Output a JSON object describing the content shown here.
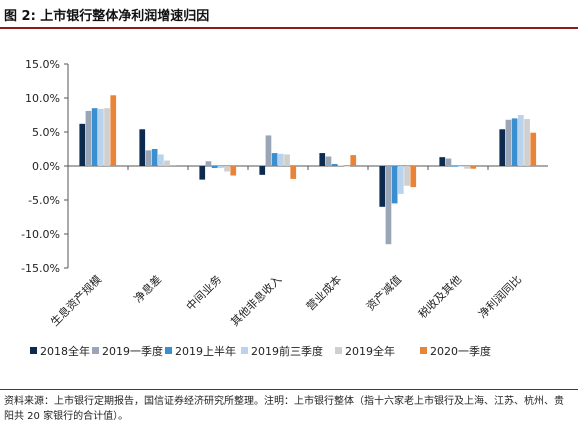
{
  "figure": {
    "title": "图 2: 上市银行整体净利润增速归因",
    "source": "资料来源：上市银行定期报告，国信证券经济研究所整理。注明：上市银行整体（指十六家老上市银行及上海、江苏、杭州、贵阳共 20 家银行的合计值）。"
  },
  "chart_data": {
    "type": "bar",
    "categories": [
      "生息资产规模",
      "净息差",
      "中间业务",
      "其他非息收入",
      "营业成本",
      "资产减值",
      "税收及其他",
      "净利润同比"
    ],
    "series": [
      {
        "name": "2018全年",
        "color": "#0d2a4f",
        "values": [
          6.2,
          5.4,
          -2.0,
          -1.3,
          1.9,
          -6.0,
          1.3,
          5.4
        ]
      },
      {
        "name": "2019一季度",
        "color": "#9aa6b6",
        "values": [
          8.1,
          2.3,
          0.7,
          4.5,
          1.4,
          -11.5,
          1.1,
          6.8
        ]
      },
      {
        "name": "2019上半年",
        "color": "#3a8fd0",
        "values": [
          8.5,
          2.5,
          -0.3,
          1.9,
          0.3,
          -5.5,
          -0.1,
          7.0
        ]
      },
      {
        "name": "2019前三季度",
        "color": "#b9d3ec",
        "values": [
          8.4,
          1.7,
          -0.3,
          1.8,
          0.1,
          -4.1,
          -0.1,
          7.5
        ]
      },
      {
        "name": "2019全年",
        "color": "#cfcfcf",
        "values": [
          8.5,
          0.8,
          -0.8,
          1.7,
          0.0,
          -2.9,
          -0.4,
          6.9
        ]
      },
      {
        "name": "2020一季度",
        "color": "#e8843a",
        "values": [
          10.4,
          0.1,
          -1.4,
          -1.9,
          1.6,
          -3.1,
          -0.4,
          4.9
        ]
      }
    ],
    "ylim": [
      -15,
      15
    ],
    "yticks": [
      -15,
      -10,
      -5,
      0,
      5,
      10,
      15
    ],
    "ytick_labels": [
      "-15.0%",
      "-10.0%",
      "-5.0%",
      "0.0%",
      "5.0%",
      "10.0%",
      "15.0%"
    ],
    "grid": false,
    "legend_position": "bottom"
  }
}
